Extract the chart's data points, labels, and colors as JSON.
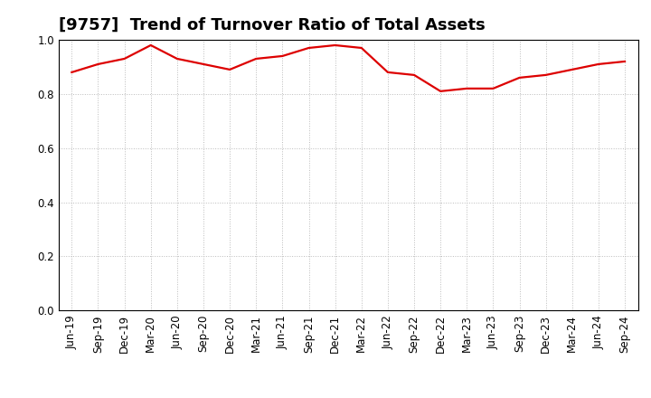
{
  "title": "[9757]  Trend of Turnover Ratio of Total Assets",
  "x_labels": [
    "Jun-19",
    "Sep-19",
    "Dec-19",
    "Mar-20",
    "Jun-20",
    "Sep-20",
    "Dec-20",
    "Mar-21",
    "Jun-21",
    "Sep-21",
    "Dec-21",
    "Mar-22",
    "Jun-22",
    "Sep-22",
    "Dec-22",
    "Mar-23",
    "Jun-23",
    "Sep-23",
    "Dec-23",
    "Mar-24",
    "Jun-24",
    "Sep-24"
  ],
  "y_values": [
    0.88,
    0.91,
    0.93,
    0.98,
    0.93,
    0.91,
    0.89,
    0.93,
    0.94,
    0.97,
    0.98,
    0.97,
    0.88,
    0.87,
    0.81,
    0.82,
    0.82,
    0.86,
    0.87,
    0.89,
    0.91,
    0.92
  ],
  "line_color": "#dd0000",
  "line_width": 1.6,
  "ylim": [
    0.0,
    1.0
  ],
  "yticks": [
    0.0,
    0.2,
    0.4,
    0.6,
    0.8,
    1.0
  ],
  "title_fontsize": 13,
  "axis_fontsize": 8.5,
  "bg_color": "#ffffff",
  "plot_bg_color": "#ffffff",
  "grid_color": "#bbbbbb",
  "border_color": "#000000"
}
